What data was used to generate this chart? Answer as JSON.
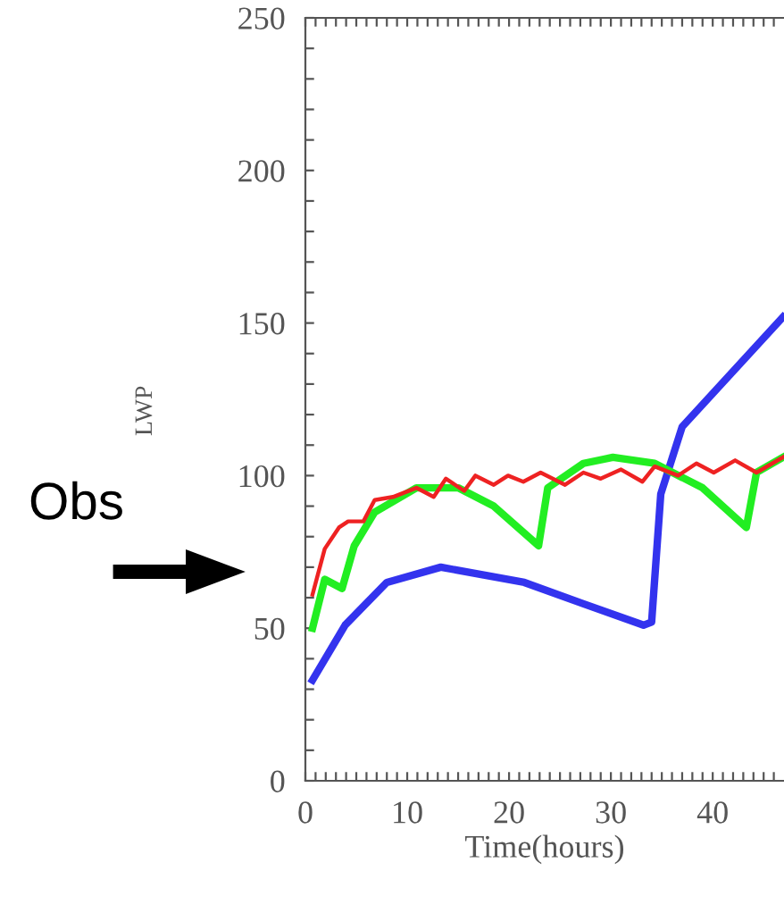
{
  "chart_data": {
    "type": "line",
    "xlabel": "Time(hours)",
    "ylabel": "LWP",
    "annotations": [
      "Obs"
    ],
    "xlim": [
      0,
      47
    ],
    "ylim": [
      0,
      250
    ],
    "xticks": [
      0,
      {
        "value": 1,
        "label": null
      },
      {
        "value": 2,
        "label": null
      },
      {
        "value": 3,
        "label": null
      },
      {
        "value": 4,
        "label": null
      },
      {
        "value": 5,
        "label": null
      },
      {
        "value": 6,
        "label": null
      },
      {
        "value": 7,
        "label": null
      },
      {
        "value": 8,
        "label": null
      },
      {
        "value": 9,
        "label": null
      },
      10,
      {
        "value": 11,
        "label": null
      },
      {
        "value": 12,
        "label": null
      },
      {
        "value": 13,
        "label": null
      },
      {
        "value": 14,
        "label": null
      },
      {
        "value": 15,
        "label": null
      },
      {
        "value": 16,
        "label": null
      },
      {
        "value": 17,
        "label": null
      },
      {
        "value": 18,
        "label": null
      },
      {
        "value": 19,
        "label": null
      },
      20,
      {
        "value": 21,
        "label": null
      },
      {
        "value": 22,
        "label": null
      },
      {
        "value": 23,
        "label": null
      },
      {
        "value": 24,
        "label": null
      },
      {
        "value": 25,
        "label": null
      },
      {
        "value": 26,
        "label": null
      },
      {
        "value": 27,
        "label": null
      },
      {
        "value": 28,
        "label": null
      },
      {
        "value": 29,
        "label": null
      },
      30,
      {
        "value": 31,
        "label": null
      },
      {
        "value": 32,
        "label": null
      },
      {
        "value": 33,
        "label": null
      },
      {
        "value": 34,
        "label": null
      },
      {
        "value": 35,
        "label": null
      },
      {
        "value": 36,
        "label": null
      },
      {
        "value": 37,
        "label": null
      },
      {
        "value": 38,
        "label": null
      },
      {
        "value": 39,
        "label": null
      },
      40,
      {
        "value": 41,
        "label": null
      },
      {
        "value": 42,
        "label": null
      },
      {
        "value": 43,
        "label": null
      },
      {
        "value": 44,
        "label": null
      },
      {
        "value": 45,
        "label": null
      },
      {
        "value": 46,
        "label": null
      }
    ],
    "yticks": [
      0,
      {
        "value": 10,
        "label": null
      },
      {
        "value": 20,
        "label": null
      },
      {
        "value": 30,
        "label": null
      },
      {
        "value": 40,
        "label": null
      },
      50,
      {
        "value": 60,
        "label": null
      },
      {
        "value": 70,
        "label": null
      },
      {
        "value": 80,
        "label": null
      },
      {
        "value": 90,
        "label": null
      },
      100,
      {
        "value": 110,
        "label": null
      },
      {
        "value": 120,
        "label": null
      },
      {
        "value": 130,
        "label": null
      },
      {
        "value": 140,
        "label": null
      },
      150,
      {
        "value": 160,
        "label": null
      },
      {
        "value": 170,
        "label": null
      },
      {
        "value": 180,
        "label": null
      },
      {
        "value": 190,
        "label": null
      },
      200,
      {
        "value": 210,
        "label": null
      },
      {
        "value": 220,
        "label": null
      },
      {
        "value": 230,
        "label": null
      },
      {
        "value": 240,
        "label": null
      },
      250
    ],
    "grid": false,
    "legend": false,
    "marker": "none",
    "line_style": "solid",
    "series": [
      {
        "color": "#3333ee",
        "x": [
          0.7,
          3.9,
          8,
          13.3,
          21.5,
          27.3,
          33.2,
          34,
          34.9,
          37,
          46.9
        ],
        "values": [
          33,
          51,
          65,
          70,
          65,
          58,
          51,
          52,
          94,
          116,
          152
        ]
      },
      {
        "color": "#22ee22",
        "x": [
          0.7,
          1.9,
          3.6,
          4.8,
          6.8,
          10.9,
          15,
          18.5,
          22.9,
          23.8,
          27.3,
          30.2,
          34.3,
          39,
          43.3,
          44.3,
          46.9
        ],
        "values": [
          50,
          66,
          63,
          77,
          88,
          96,
          96,
          90,
          77,
          96,
          104,
          106,
          104,
          96,
          83,
          101,
          106
        ]
      },
      {
        "color": "#ee2222",
        "x": [
          0.7,
          1.9,
          3.3,
          4.2,
          5.7,
          6.8,
          8.6,
          10.9,
          12.6,
          13.8,
          15.6,
          16.7,
          18.5,
          19.9,
          21.4,
          23.1,
          25.5,
          27.3,
          29,
          31,
          33.1,
          34.3,
          36.6,
          38.4,
          40.1,
          42.2,
          44.3,
          46.9
        ],
        "values": [
          61,
          76,
          83,
          85,
          85,
          92,
          93,
          96,
          93,
          99,
          95,
          100,
          97,
          100,
          98,
          101,
          97,
          101,
          99,
          102,
          98,
          103,
          100,
          104,
          101,
          105,
          101,
          106
        ]
      }
    ]
  }
}
